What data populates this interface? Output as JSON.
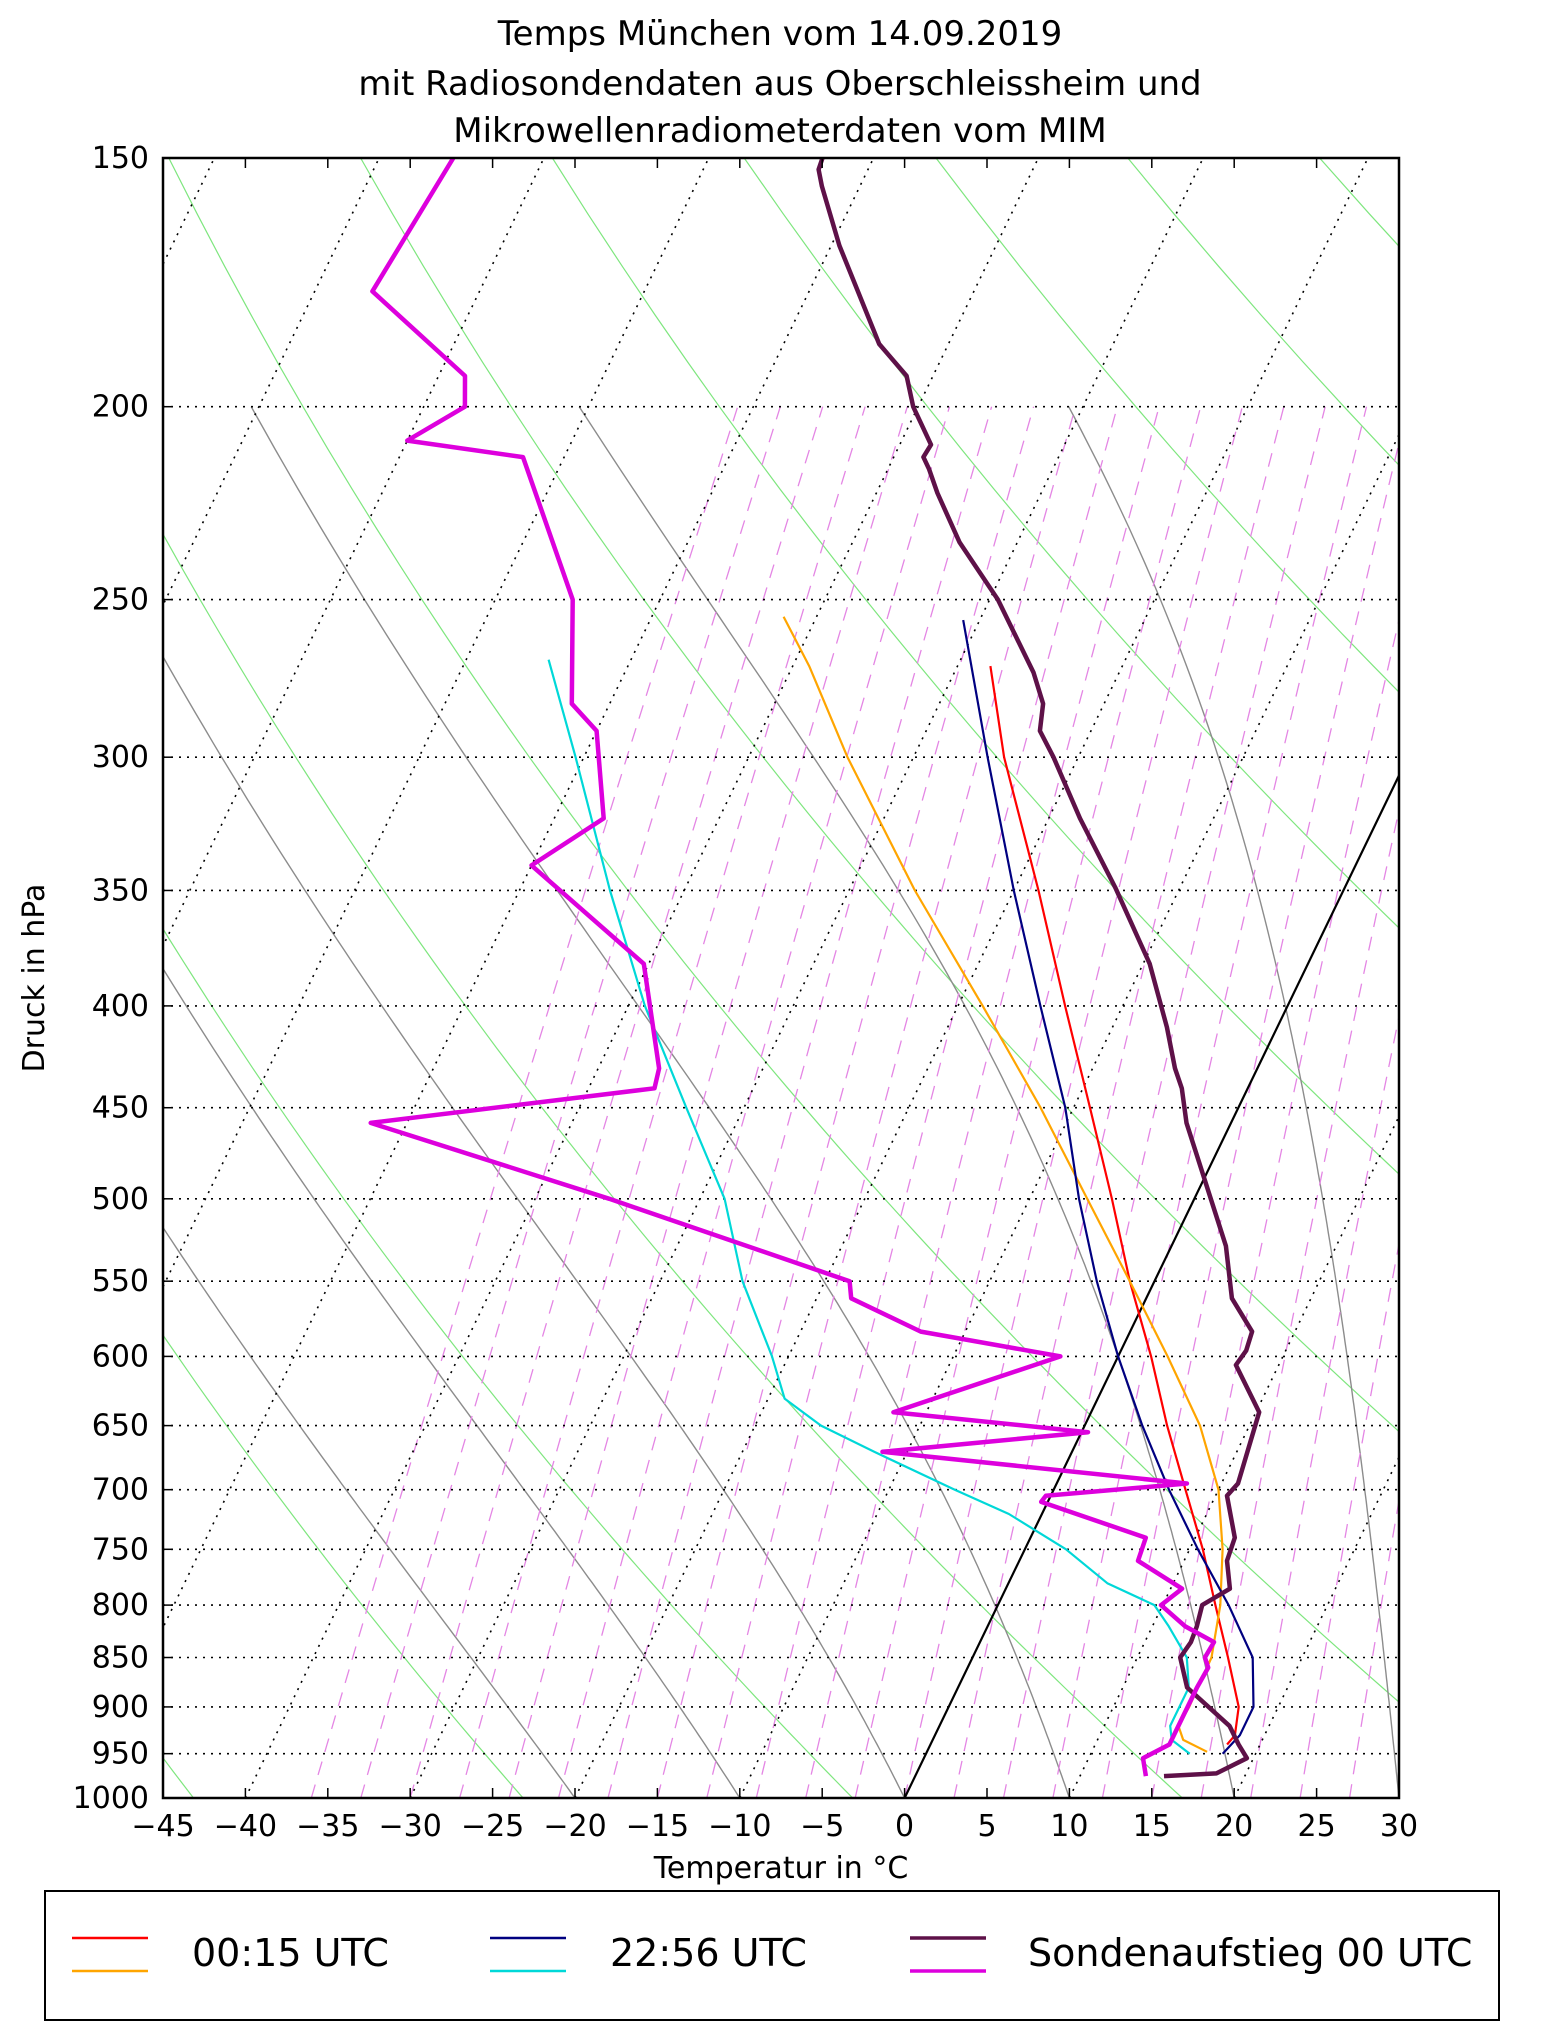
{
  "chart_data": {
    "type": "line",
    "subtype": "skew-T log-p diagram",
    "title": [
      "Temps München vom 14.09.2019",
      "mit Radiosondendaten aus Oberschleissheim und",
      "Mikrowellenradiometerdaten vom MIM"
    ],
    "xlabel": "Temperatur in °C",
    "ylabel": "Druck in hPa",
    "xlim": [
      -45,
      30
    ],
    "ylim": [
      1000,
      150
    ],
    "y_scale": "log",
    "skew_degrees_per_decade": 58.4,
    "x_ticks": [
      "−45",
      "−40",
      "−35",
      "−30",
      "−25",
      "−20",
      "−15",
      "−10",
      "−5",
      "0",
      "5",
      "10",
      "15",
      "20",
      "25",
      "30"
    ],
    "x_tick_values": [
      -45,
      -40,
      -35,
      -30,
      -25,
      -20,
      -15,
      -10,
      -5,
      0,
      5,
      10,
      15,
      20,
      25,
      30
    ],
    "y_ticks": [
      "150",
      "200",
      "250",
      "300",
      "350",
      "400",
      "450",
      "500",
      "550",
      "600",
      "650",
      "700",
      "750",
      "800",
      "850",
      "900",
      "950",
      "1000"
    ],
    "y_tick_values": [
      150,
      200,
      250,
      300,
      350,
      400,
      450,
      500,
      550,
      600,
      650,
      700,
      750,
      800,
      850,
      900,
      950,
      1000
    ],
    "background": {
      "isotherm_start_temps": [
        -150,
        -140,
        -130,
        -120,
        -110,
        -100,
        -90,
        -80,
        -70,
        -60,
        -50,
        -40,
        -30,
        -20,
        -10,
        0,
        10,
        20,
        30
      ],
      "dry_adiabat_thetas_K": [
        210,
        230,
        250,
        270,
        290,
        310,
        330,
        350,
        370,
        390,
        410,
        430,
        450,
        470,
        490,
        510
      ],
      "moist_adiabat_start_temps": [
        -20,
        -10,
        0,
        10,
        20,
        30
      ],
      "mixing_ratio_start_temps": [
        -36,
        -33,
        -30,
        -27,
        -24,
        -21,
        -18,
        -15,
        -12,
        -9,
        -6,
        -3,
        0,
        3,
        6,
        9,
        12,
        15,
        18,
        21,
        24,
        27,
        30
      ],
      "zero_isotherm_highlight": 0
    },
    "series": [
      {
        "name": "00:15 UTC Temperatur",
        "color": "#ff0000",
        "points": [
          [
            940,
            18.0
          ],
          [
            930,
            18.2
          ],
          [
            900,
            17.6
          ],
          [
            850,
            15.5
          ],
          [
            800,
            13.2
          ],
          [
            750,
            10.8
          ],
          [
            700,
            8.0
          ],
          [
            650,
            5.0
          ],
          [
            600,
            2.0
          ],
          [
            550,
            -1.5
          ],
          [
            500,
            -5.0
          ],
          [
            450,
            -9.0
          ],
          [
            400,
            -13.5
          ],
          [
            350,
            -18.5
          ],
          [
            300,
            -24.5
          ],
          [
            270,
            -28.0
          ]
        ]
      },
      {
        "name": "00:15 UTC Taupunkt",
        "color": "#ffa500",
        "points": [
          [
            948,
            17.0
          ],
          [
            935,
            15.2
          ],
          [
            920,
            14.5
          ],
          [
            900,
            14.6
          ],
          [
            850,
            14.5
          ],
          [
            800,
            13.5
          ],
          [
            750,
            12.0
          ],
          [
            700,
            10.0
          ],
          [
            650,
            7.0
          ],
          [
            600,
            3.0
          ],
          [
            550,
            -1.5
          ],
          [
            500,
            -6.5
          ],
          [
            450,
            -12.0
          ],
          [
            400,
            -18.5
          ],
          [
            350,
            -26.0
          ],
          [
            300,
            -34.0
          ],
          [
            270,
            -39.0
          ],
          [
            255,
            -42.0
          ]
        ]
      },
      {
        "name": "22:56 UTC Temperatur",
        "color": "#000080",
        "points": [
          [
            950,
            18.0
          ],
          [
            930,
            18.5
          ],
          [
            900,
            18.5
          ],
          [
            850,
            17.0
          ],
          [
            800,
            14.0
          ],
          [
            750,
            10.5
          ],
          [
            700,
            7.0
          ],
          [
            650,
            3.5
          ],
          [
            600,
            0.0
          ],
          [
            550,
            -3.5
          ],
          [
            500,
            -7.0
          ],
          [
            450,
            -10.5
          ],
          [
            400,
            -15.0
          ],
          [
            350,
            -20.0
          ],
          [
            300,
            -25.5
          ],
          [
            256,
            -31.0
          ]
        ]
      },
      {
        "name": "22:56 UTC Taupunkt",
        "color": "#00d8d8",
        "points": [
          [
            950,
            16.0
          ],
          [
            935,
            14.5
          ],
          [
            920,
            14.0
          ],
          [
            900,
            14.0
          ],
          [
            880,
            14.0
          ],
          [
            850,
            13.0
          ],
          [
            820,
            11.0
          ],
          [
            800,
            9.5
          ],
          [
            780,
            6.0
          ],
          [
            750,
            2.5
          ],
          [
            720,
            -2.0
          ],
          [
            700,
            -6.0
          ],
          [
            670,
            -12.0
          ],
          [
            650,
            -16.0
          ],
          [
            630,
            -19.0
          ],
          [
            600,
            -21.0
          ],
          [
            550,
            -25.0
          ],
          [
            500,
            -28.5
          ],
          [
            450,
            -33.5
          ],
          [
            400,
            -39.0
          ],
          [
            350,
            -44.5
          ],
          [
            300,
            -50.5
          ],
          [
            268,
            -55.0
          ]
        ]
      },
      {
        "name": "Sondenaufstieg 00 UTC Temperatur",
        "color": "#5e1148",
        "points": [
          [
            975,
            15.1
          ],
          [
            972,
            18.2
          ],
          [
            955,
            19.6
          ],
          [
            940,
            18.7
          ],
          [
            920,
            17.6
          ],
          [
            880,
            13.9
          ],
          [
            850,
            12.6
          ],
          [
            835,
            12.8
          ],
          [
            820,
            12.7
          ],
          [
            800,
            12.4
          ],
          [
            785,
            13.6
          ],
          [
            760,
            12.6
          ],
          [
            740,
            12.4
          ],
          [
            705,
            10.7
          ],
          [
            695,
            11.0
          ],
          [
            640,
            10.2
          ],
          [
            606,
            7.4
          ],
          [
            596,
            7.6
          ],
          [
            583,
            7.4
          ],
          [
            561,
            5.2
          ],
          [
            528,
            3.3
          ],
          [
            500,
            1.0
          ],
          [
            458,
            -2.7
          ],
          [
            440,
            -4.0
          ],
          [
            430,
            -5.0
          ],
          [
            410,
            -6.7
          ],
          [
            381,
            -9.6
          ],
          [
            349,
            -13.9
          ],
          [
            322,
            -18.1
          ],
          [
            300,
            -21.5
          ],
          [
            291,
            -23.1
          ],
          [
            282,
            -23.7
          ],
          [
            272,
            -25.2
          ],
          [
            250,
            -29.5
          ],
          [
            234,
            -33.5
          ],
          [
            221,
            -36.3
          ],
          [
            215,
            -37.5
          ],
          [
            212,
            -38.2
          ],
          [
            209,
            -38.1
          ],
          [
            200,
            -40.3
          ],
          [
            193,
            -41.6
          ],
          [
            186,
            -44.2
          ],
          [
            166,
            -49.5
          ],
          [
            155,
            -52.3
          ],
          [
            152,
            -53.0
          ],
          [
            150,
            -53.1
          ]
        ]
      },
      {
        "name": "Sondenaufstieg 00 UTC Taupunkt",
        "color": "#dd00dd",
        "points": [
          [
            975,
            14.0
          ],
          [
            955,
            13.3
          ],
          [
            940,
            14.5
          ],
          [
            920,
            14.5
          ],
          [
            880,
            14.5
          ],
          [
            860,
            14.6
          ],
          [
            850,
            14.1
          ],
          [
            835,
            14.2
          ],
          [
            820,
            12.0
          ],
          [
            800,
            9.9
          ],
          [
            785,
            10.7
          ],
          [
            760,
            7.2
          ],
          [
            740,
            7.0
          ],
          [
            710,
            -0.4
          ],
          [
            705,
            -0.3
          ],
          [
            695,
            7.9
          ],
          [
            670,
            -11.5
          ],
          [
            655,
            0.4
          ],
          [
            640,
            -12.0
          ],
          [
            600,
            -3.5
          ],
          [
            583,
            -12.7
          ],
          [
            561,
            -17.9
          ],
          [
            550,
            -18.5
          ],
          [
            500,
            -35.5
          ],
          [
            458,
            -52.2
          ],
          [
            440,
            -36.0
          ],
          [
            430,
            -36.3
          ],
          [
            381,
            -40.3
          ],
          [
            340,
            -50.0
          ],
          [
            322,
            -47.0
          ],
          [
            291,
            -50.0
          ],
          [
            282,
            -52.3
          ],
          [
            250,
            -55.3
          ],
          [
            212,
            -62.5
          ],
          [
            208,
            -70.0
          ],
          [
            200,
            -67.5
          ],
          [
            193,
            -68.4
          ],
          [
            175,
            -76.5
          ],
          [
            150,
            -75.5
          ]
        ]
      }
    ],
    "dry_adiabat_parcel": {
      "label": "",
      "color": "#000000"
    }
  },
  "legend": {
    "entries": [
      {
        "label": "00:15 UTC",
        "color_temp": "#ff0000",
        "color_dew": "#ffa500"
      },
      {
        "label": "22:56 UTC",
        "color_temp": "#000080",
        "color_dew": "#00d8d8"
      },
      {
        "label": "Sondenaufstieg 00 UTC",
        "color_temp": "#5e1148",
        "color_dew": "#dd00dd"
      }
    ]
  }
}
